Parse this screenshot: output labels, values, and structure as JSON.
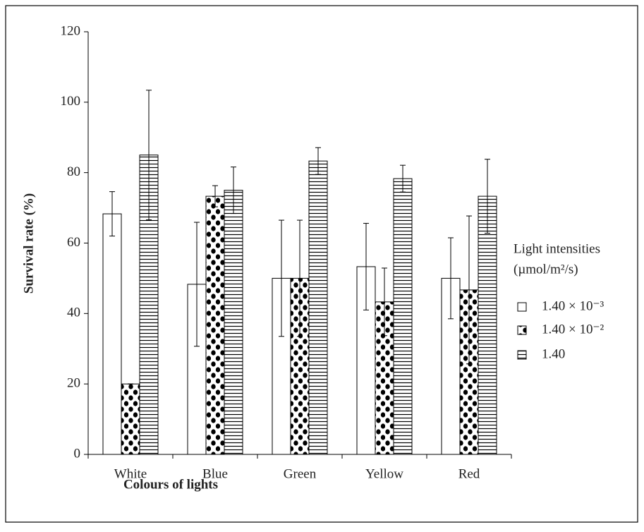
{
  "chart_data": {
    "type": "bar",
    "x_label": "Colours of lights",
    "y_label": "Survival rate (%)",
    "legend_title": [
      "Light intensities",
      "(µmol/m²/s)"
    ],
    "legend_position": "right",
    "categories": [
      "White",
      "Blue",
      "Green",
      "Yellow",
      "Red"
    ],
    "series": [
      {
        "name": "1.40 × 10⁻³",
        "color": "#ffffff",
        "pattern": "none",
        "values": [
          68.3,
          48.3,
          50,
          53.3,
          50
        ],
        "errors": [
          6.3,
          17.6,
          16.5,
          12.3,
          11.5
        ]
      },
      {
        "name": "1.40 × 10⁻²",
        "color": "#ffffff",
        "pattern": "dots",
        "values": [
          20,
          73.3,
          50,
          43.3,
          46.7
        ],
        "errors": [
          0,
          3,
          16.5,
          9.6,
          21
        ]
      },
      {
        "name": "1.40",
        "color": "#ffffff",
        "pattern": "horizontal-lines",
        "values": [
          85,
          75,
          83.3,
          78.3,
          73.3
        ],
        "errors": [
          18.4,
          6.6,
          3.8,
          3.8,
          10.5
        ]
      }
    ],
    "ylim": [
      0,
      120
    ],
    "yticks": [
      0,
      20,
      40,
      60,
      80,
      100,
      120
    ],
    "grid": false
  }
}
